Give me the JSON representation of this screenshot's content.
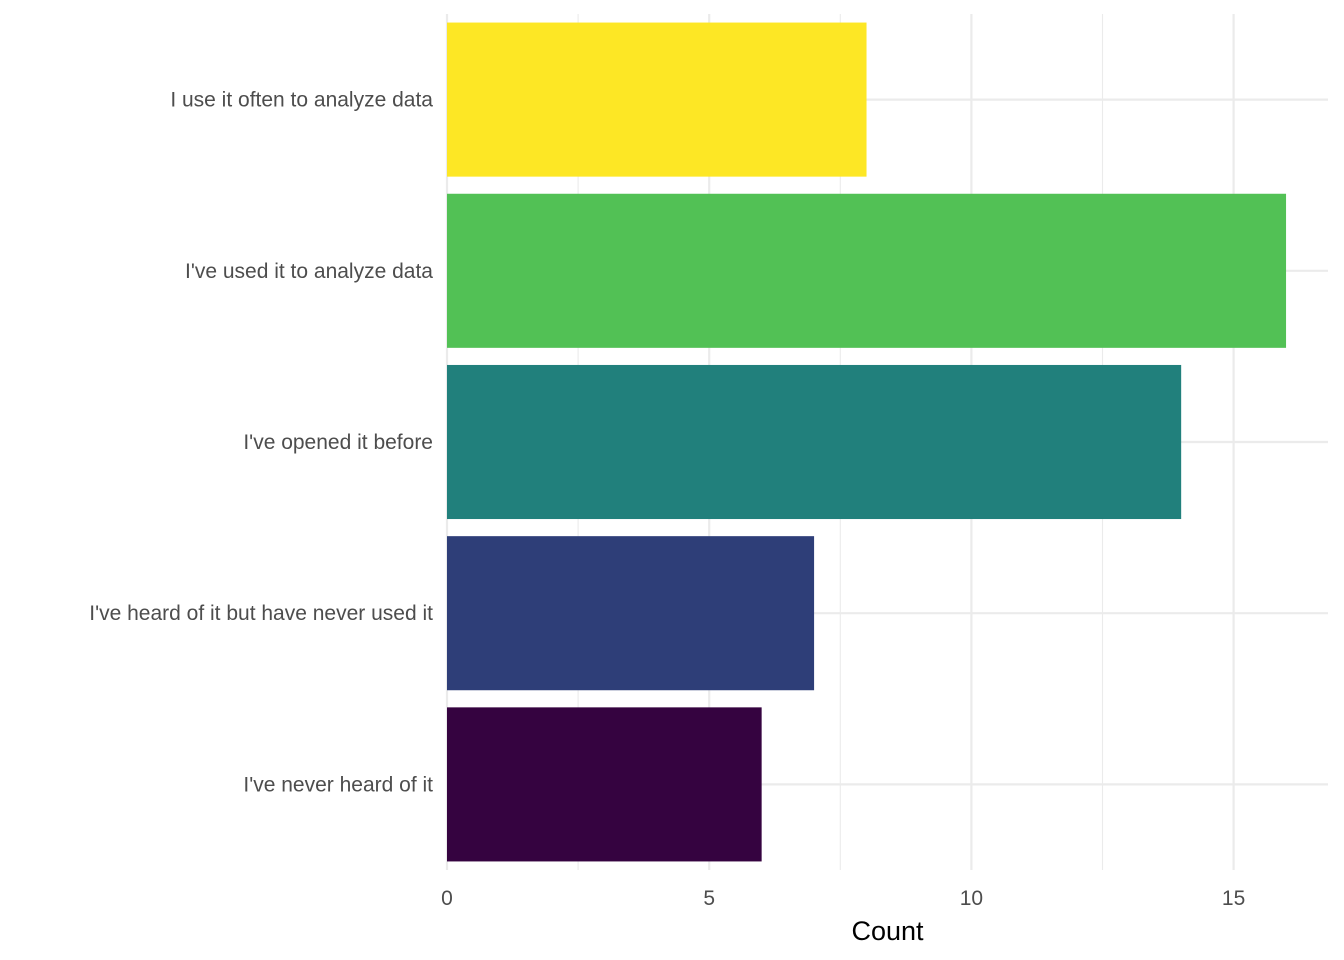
{
  "chart_data": {
    "type": "bar",
    "orientation": "horizontal",
    "categories": [
      "I use it often to analyze data",
      "I've used it to analyze data",
      "I've opened it before",
      "I've heard of it but have never used it",
      "I've never heard of it"
    ],
    "values": [
      8,
      16,
      14,
      7,
      6
    ],
    "colors": [
      "#fde725",
      "#52c155",
      "#21807c",
      "#2e3e78",
      "#350340"
    ],
    "xlabel": "Count",
    "ylabel": "",
    "title": "",
    "xlim": [
      0,
      16.8
    ],
    "xticks": [
      0,
      5,
      10,
      15
    ],
    "xtick_labels": [
      "0",
      "5",
      "10",
      "15"
    ],
    "grid": true,
    "legend": "none"
  }
}
